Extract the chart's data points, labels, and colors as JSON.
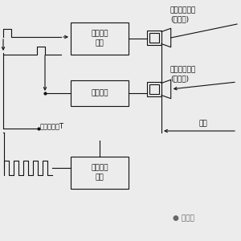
{
  "bg_color": "#ececec",
  "box1_label": "脉冲发送\n电路",
  "box2_label": "接收电路",
  "box3_label": "标准振荡\n电路",
  "sensor1_label": "超声波传感器\n(发送器)",
  "sensor2_label": "超声波传感器\n(接收器)",
  "time_label": "反射时间：T",
  "distance_label": "距离",
  "wechat_label": "公众号",
  "line_color": "#111111",
  "box_bg": "#ececec",
  "font_size": 6.5,
  "label_font_size": 6.5
}
